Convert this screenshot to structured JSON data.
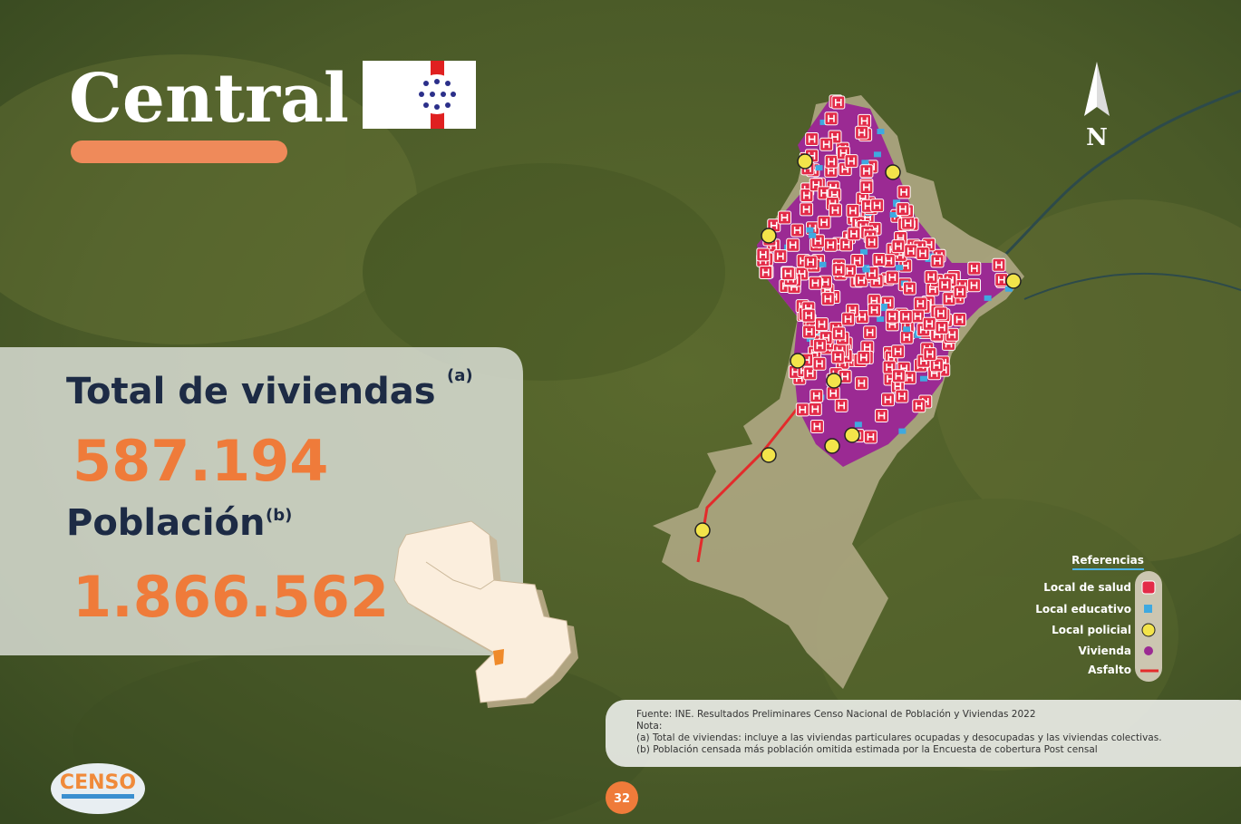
{
  "header": {
    "title": "Central",
    "north": "N"
  },
  "stats": {
    "housing_label": "Total de viviendas",
    "housing_note": "(a)",
    "housing_value": "587.194",
    "population_label": "Población",
    "population_note": "(b)",
    "population_value": "1.866.562"
  },
  "legend": {
    "title": "Referencias",
    "items": [
      "Local de salud",
      "Local educativo",
      "Local policial",
      "Vivienda",
      "Asfalto"
    ]
  },
  "source": {
    "lines": [
      "Fuente: INE. Resultados Preliminares Censo Nacional de Población y Viviendas 2022",
      "Nota:",
      "(a) Total de viviendas: incluye a las viviendas particulares ocupadas y desocupadas y las viviendas colectivas.",
      "(b) Población censada más  población omitida estimada por la Encuesta de cobertura Post censal"
    ]
  },
  "footer": {
    "page": "32",
    "logo": "CENSO"
  }
}
